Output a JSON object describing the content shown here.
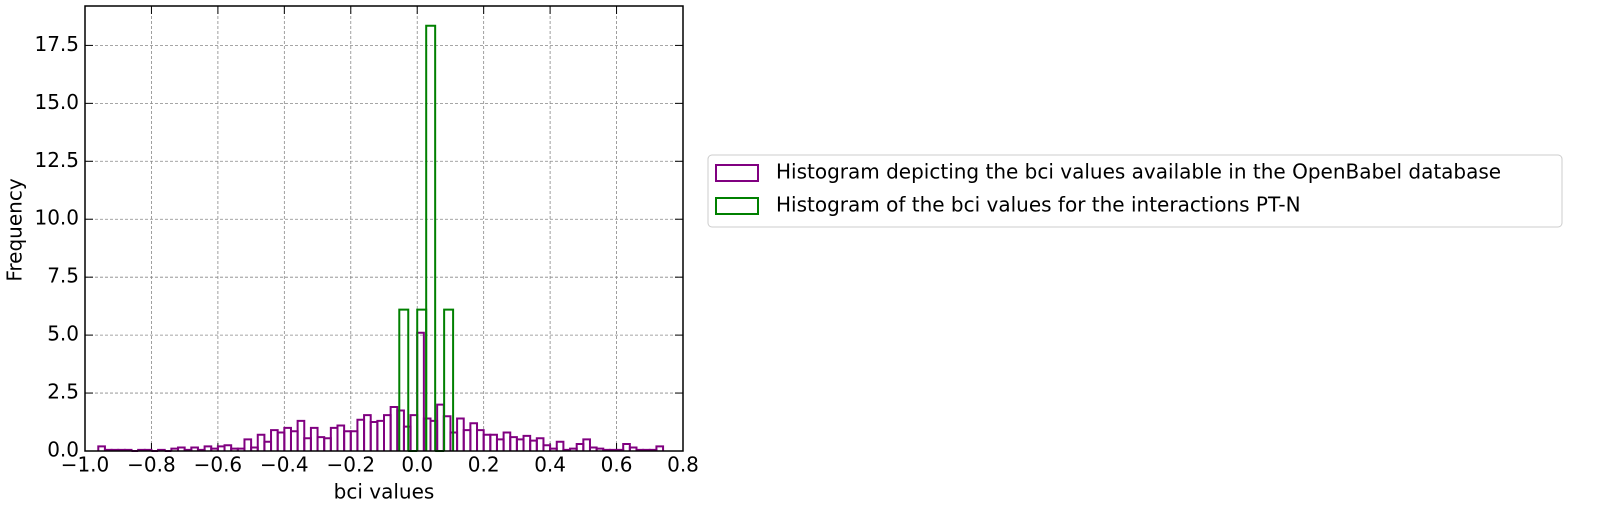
{
  "chart_data": {
    "type": "histogram",
    "xlabel": "bci values",
    "ylabel": "Frequency",
    "xlim": [
      -1.0,
      0.8
    ],
    "ylim": [
      0,
      19.2
    ],
    "xticks": [
      {
        "value": -1.0,
        "label": "−1.0"
      },
      {
        "value": -0.8,
        "label": "−0.8"
      },
      {
        "value": -0.6,
        "label": "−0.6"
      },
      {
        "value": -0.4,
        "label": "−0.4"
      },
      {
        "value": -0.2,
        "label": "−0.2"
      },
      {
        "value": 0.0,
        "label": "0.0"
      },
      0.2,
      0.4,
      0.6,
      0.8
    ],
    "yticks": [
      {
        "value": 0,
        "label": "0.0"
      },
      2.5,
      {
        "value": 5,
        "label": "5.0"
      },
      7.5,
      {
        "value": 10,
        "label": "10.0"
      },
      12.5,
      {
        "value": 15,
        "label": "15.0"
      },
      17.5
    ],
    "grid": true,
    "legend": "outside right",
    "series": [
      {
        "name": "Histogram depicting the bci values available in the OpenBabel database",
        "color": "#800080",
        "bins": [
          -0.96,
          -0.94,
          -0.92,
          -0.9,
          -0.88,
          -0.86,
          -0.84,
          -0.82,
          -0.8,
          -0.78,
          -0.76,
          -0.74,
          -0.72,
          -0.7,
          -0.68,
          -0.66,
          -0.64,
          -0.62,
          -0.6,
          -0.58,
          -0.56,
          -0.54,
          -0.52,
          -0.5,
          -0.48,
          -0.46,
          -0.44,
          -0.42,
          -0.4,
          -0.38,
          -0.36,
          -0.34,
          -0.32,
          -0.3,
          -0.28,
          -0.26,
          -0.24,
          -0.22,
          -0.2,
          -0.18,
          -0.16,
          -0.14,
          -0.12,
          -0.1,
          -0.08,
          -0.06,
          -0.04,
          -0.02,
          0.0,
          0.02,
          0.04,
          0.06,
          0.08,
          0.1,
          0.12,
          0.14,
          0.16,
          0.18,
          0.2,
          0.22,
          0.24,
          0.26,
          0.28,
          0.3,
          0.32,
          0.34,
          0.36,
          0.38,
          0.4,
          0.42,
          0.44,
          0.46,
          0.48,
          0.5,
          0.52,
          0.54,
          0.56,
          0.58,
          0.6,
          0.62,
          0.64,
          0.66,
          0.68,
          0.7,
          0.72,
          0.74
        ],
        "values": [
          0.2,
          0.05,
          0.05,
          0.05,
          0.05,
          0,
          0.05,
          0.05,
          0,
          0.05,
          0,
          0.1,
          0.15,
          0.05,
          0.15,
          0.05,
          0.2,
          0.1,
          0.2,
          0.25,
          0.1,
          0.1,
          0.5,
          0.15,
          0.7,
          0.4,
          0.9,
          0.8,
          1.0,
          0.85,
          1.3,
          0.55,
          1.0,
          0.6,
          0.55,
          1.0,
          1.1,
          0.85,
          0.85,
          1.35,
          1.55,
          1.25,
          1.3,
          1.55,
          1.9,
          1.75,
          1.05,
          1.55,
          5.1,
          1.4,
          1.3,
          2.0,
          1.5,
          0.8,
          1.4,
          0.9,
          1.2,
          0.9,
          0.7,
          0.7,
          0.5,
          0.8,
          0.6,
          0.5,
          0.65,
          0.45,
          0.55,
          0.25,
          0.1,
          0.4,
          0.05,
          0.1,
          0.3,
          0.5,
          0.15,
          0.1,
          0.05,
          0.05,
          0.05,
          0.3,
          0.15,
          0.05,
          0.05,
          0.05,
          0.2
        ]
      },
      {
        "name": "Histogram of the bci values for the interactions PT-N",
        "color": "#008000",
        "bins": [
          -0.054,
          -0.027,
          0.0,
          0.027,
          0.054,
          0.081,
          0.108
        ],
        "values": [
          6.1,
          0,
          6.1,
          18.35,
          0,
          6.1
        ]
      }
    ]
  }
}
